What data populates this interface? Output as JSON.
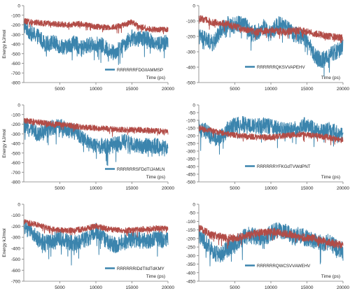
{
  "colors": {
    "blue": "#3b84ad",
    "red": "#b24c47",
    "axis": "#7f7f7f"
  },
  "chart_data": [
    {
      "type": "line",
      "legend": "RRRRRRFDGIIAMMSP",
      "ylabel": "Energy kJ/mol",
      "xlabel": "Time (ps)",
      "xlim": [
        0,
        20000
      ],
      "ylim": [
        -800,
        0
      ],
      "yticks": [
        0,
        -100,
        -200,
        -300,
        -400,
        -500,
        -600,
        -700,
        -800
      ],
      "xticks": [
        5000,
        10000,
        15000,
        20000
      ],
      "series": [
        {
          "color": "blue",
          "points": [
            [
              0,
              -200
            ],
            [
              1000,
              -290
            ],
            [
              2000,
              -320
            ],
            [
              3000,
              -400
            ],
            [
              4000,
              -380
            ],
            [
              5000,
              -420
            ],
            [
              6000,
              -430
            ],
            [
              7000,
              -380
            ],
            [
              8000,
              -450
            ],
            [
              9000,
              -410
            ],
            [
              10000,
              -400
            ],
            [
              11000,
              -420
            ],
            [
              12000,
              -480
            ],
            [
              13000,
              -470
            ],
            [
              14000,
              -400
            ],
            [
              15000,
              -330
            ],
            [
              16000,
              -350
            ],
            [
              17000,
              -330
            ],
            [
              18000,
              -380
            ],
            [
              19000,
              -400
            ],
            [
              20000,
              -380
            ]
          ],
          "amp": 110
        },
        {
          "color": "red",
          "points": [
            [
              0,
              -160
            ],
            [
              2000,
              -180
            ],
            [
              4000,
              -190
            ],
            [
              6000,
              -200
            ],
            [
              8000,
              -190
            ],
            [
              10000,
              -220
            ],
            [
              12000,
              -230
            ],
            [
              14000,
              -200
            ],
            [
              15000,
              -170
            ],
            [
              16000,
              -220
            ],
            [
              18000,
              -250
            ],
            [
              20000,
              -250
            ]
          ],
          "amp": 40
        }
      ]
    },
    {
      "type": "line",
      "legend": "RRRRRRQKSVVAPEHV",
      "ylabel": "",
      "xlabel": "Time (ps)",
      "xlim": [
        0,
        20000
      ],
      "ylim": [
        -500,
        0
      ],
      "yticks": [
        0,
        -100,
        -200,
        -300,
        -400,
        -500
      ],
      "xticks": [
        5000,
        10000,
        15000,
        20000
      ],
      "series": [
        {
          "color": "blue",
          "points": [
            [
              0,
              -200
            ],
            [
              1000,
              -220
            ],
            [
              2000,
              -250
            ],
            [
              3000,
              -160
            ],
            [
              4000,
              -120
            ],
            [
              5000,
              -130
            ],
            [
              6000,
              -100
            ],
            [
              7000,
              -160
            ],
            [
              8000,
              -180
            ],
            [
              9000,
              -140
            ],
            [
              10000,
              -180
            ],
            [
              11000,
              -120
            ],
            [
              12000,
              -140
            ],
            [
              13000,
              -180
            ],
            [
              14000,
              -200
            ],
            [
              15000,
              -220
            ],
            [
              16000,
              -320
            ],
            [
              17000,
              -360
            ],
            [
              18000,
              -320
            ],
            [
              19000,
              -300
            ],
            [
              20000,
              -270
            ]
          ],
          "amp": 70
        },
        {
          "color": "red",
          "points": [
            [
              0,
              -80
            ],
            [
              2000,
              -110
            ],
            [
              4000,
              -120
            ],
            [
              6000,
              -150
            ],
            [
              8000,
              -170
            ],
            [
              10000,
              -160
            ],
            [
              12000,
              -170
            ],
            [
              14000,
              -160
            ],
            [
              16000,
              -180
            ],
            [
              18000,
              -200
            ],
            [
              20000,
              -210
            ]
          ],
          "amp": 30
        }
      ]
    },
    {
      "type": "line",
      "legend": "RRRRRRSFDdTIJAMLN",
      "ylabel": "Energy kJ/mol",
      "xlabel": "Time (ps)",
      "xlim": [
        0,
        20000
      ],
      "ylim": [
        -800,
        0
      ],
      "yticks": [
        0,
        -100,
        -200,
        -300,
        -400,
        -500,
        -600,
        -700,
        -800
      ],
      "xticks": [
        5000,
        10000,
        15000,
        20000
      ],
      "series": [
        {
          "color": "blue",
          "points": [
            [
              0,
              -220
            ],
            [
              1000,
              -260
            ],
            [
              2000,
              -300
            ],
            [
              3000,
              -250
            ],
            [
              4000,
              -230
            ],
            [
              5000,
              -220
            ],
            [
              6000,
              -260
            ],
            [
              7000,
              -280
            ],
            [
              8000,
              -330
            ],
            [
              9000,
              -400
            ],
            [
              10000,
              -430
            ],
            [
              11000,
              -420
            ],
            [
              12000,
              -430
            ],
            [
              13000,
              -400
            ],
            [
              14000,
              -380
            ],
            [
              15000,
              -410
            ],
            [
              16000,
              -420
            ],
            [
              17000,
              -430
            ],
            [
              18000,
              -420
            ],
            [
              19000,
              -440
            ],
            [
              20000,
              -460
            ]
          ],
          "amp": 110
        },
        {
          "color": "red",
          "points": [
            [
              0,
              -160
            ],
            [
              2000,
              -180
            ],
            [
              4000,
              -200
            ],
            [
              6000,
              -210
            ],
            [
              8000,
              -230
            ],
            [
              10000,
              -240
            ],
            [
              12000,
              -250
            ],
            [
              14000,
              -260
            ],
            [
              16000,
              -260
            ],
            [
              18000,
              -270
            ],
            [
              20000,
              -280
            ]
          ],
          "amp": 40
        }
      ]
    },
    {
      "type": "line",
      "legend": "RRRRRRYFKGdTVWdPNT",
      "ylabel": "",
      "xlabel": "Time (ps)",
      "xlim": [
        0,
        20000
      ],
      "ylim": [
        -500,
        0
      ],
      "yticks": [
        0,
        -50,
        -100,
        -150,
        -200,
        -250,
        -300,
        -350,
        -400,
        -450,
        -500
      ],
      "xticks": [
        5000,
        10000,
        15000,
        20000
      ],
      "series": [
        {
          "color": "blue",
          "points": [
            [
              0,
              -150
            ],
            [
              1000,
              -170
            ],
            [
              2000,
              -210
            ],
            [
              3000,
              -220
            ],
            [
              4000,
              -160
            ],
            [
              5000,
              -130
            ],
            [
              6000,
              -120
            ],
            [
              7000,
              -140
            ],
            [
              8000,
              -140
            ],
            [
              9000,
              -130
            ],
            [
              10000,
              -140
            ],
            [
              11000,
              -150
            ],
            [
              12000,
              -170
            ],
            [
              13000,
              -160
            ],
            [
              14000,
              -140
            ],
            [
              15000,
              -130
            ],
            [
              16000,
              -160
            ],
            [
              17000,
              -170
            ],
            [
              18000,
              -160
            ],
            [
              19000,
              -180
            ],
            [
              20000,
              -200
            ]
          ],
          "amp": 70
        },
        {
          "color": "red",
          "points": [
            [
              0,
              -150
            ],
            [
              2000,
              -170
            ],
            [
              4000,
              -190
            ],
            [
              6000,
              -200
            ],
            [
              8000,
              -210
            ],
            [
              10000,
              -210
            ],
            [
              12000,
              -200
            ],
            [
              14000,
              -190
            ],
            [
              16000,
              -200
            ],
            [
              18000,
              -210
            ],
            [
              20000,
              -230
            ]
          ],
          "amp": 25
        }
      ]
    },
    {
      "type": "line",
      "legend": "RRRRRRIDdTIIdTdKMY",
      "ylabel": "Energy kJ/mol",
      "xlabel": "Time (ps)",
      "xlim": [
        0,
        20000
      ],
      "ylim": [
        -700,
        0
      ],
      "yticks": [
        0,
        -100,
        -200,
        -300,
        -400,
        -500,
        -600,
        -700
      ],
      "xticks": [
        5000,
        10000,
        15000,
        20000
      ],
      "series": [
        {
          "color": "blue",
          "points": [
            [
              0,
              -200
            ],
            [
              1000,
              -250
            ],
            [
              2000,
              -320
            ],
            [
              3000,
              -350
            ],
            [
              4000,
              -330
            ],
            [
              5000,
              -300
            ],
            [
              6000,
              -340
            ],
            [
              7000,
              -360
            ],
            [
              8000,
              -330
            ],
            [
              9000,
              -310
            ],
            [
              10000,
              -240
            ],
            [
              11000,
              -300
            ],
            [
              12000,
              -360
            ],
            [
              13000,
              -370
            ],
            [
              14000,
              -330
            ],
            [
              15000,
              -320
            ],
            [
              16000,
              -330
            ],
            [
              17000,
              -340
            ],
            [
              18000,
              -310
            ],
            [
              19000,
              -320
            ],
            [
              20000,
              -330
            ]
          ],
          "amp": 100
        },
        {
          "color": "red",
          "points": [
            [
              0,
              -160
            ],
            [
              2000,
              -190
            ],
            [
              4000,
              -230
            ],
            [
              6000,
              -240
            ],
            [
              8000,
              -230
            ],
            [
              10000,
              -200
            ],
            [
              12000,
              -230
            ],
            [
              14000,
              -240
            ],
            [
              16000,
              -230
            ],
            [
              18000,
              -220
            ],
            [
              20000,
              -220
            ]
          ],
          "amp": 35
        }
      ]
    },
    {
      "type": "line",
      "legend": "RRRRRRQWCSVVAWEHV",
      "ylabel": "",
      "xlabel": "Time (ps)",
      "xlim": [
        0,
        20000
      ],
      "ylim": [
        -450,
        0
      ],
      "yticks": [
        0,
        -50,
        -100,
        -150,
        -200,
        -250,
        -300,
        -350,
        -400,
        -450
      ],
      "xticks": [
        5000,
        10000,
        15000,
        20000
      ],
      "series": [
        {
          "color": "blue",
          "points": [
            [
              0,
              -180
            ],
            [
              1000,
              -220
            ],
            [
              2000,
              -280
            ],
            [
              3000,
              -300
            ],
            [
              4000,
              -260
            ],
            [
              5000,
              -240
            ],
            [
              6000,
              -200
            ],
            [
              7000,
              -180
            ],
            [
              8000,
              -190
            ],
            [
              9000,
              -200
            ],
            [
              10000,
              -170
            ],
            [
              11000,
              -150
            ],
            [
              12000,
              -160
            ],
            [
              13000,
              -190
            ],
            [
              14000,
              -180
            ],
            [
              15000,
              -200
            ],
            [
              16000,
              -210
            ],
            [
              17000,
              -230
            ],
            [
              18000,
              -220
            ],
            [
              19000,
              -250
            ],
            [
              20000,
              -270
            ]
          ],
          "amp": 65
        },
        {
          "color": "red",
          "points": [
            [
              0,
              -140
            ],
            [
              2000,
              -180
            ],
            [
              4000,
              -200
            ],
            [
              6000,
              -190
            ],
            [
              8000,
              -170
            ],
            [
              10000,
              -160
            ],
            [
              12000,
              -170
            ],
            [
              14000,
              -190
            ],
            [
              16000,
              -200
            ],
            [
              18000,
              -220
            ],
            [
              20000,
              -240
            ]
          ],
          "amp": 30
        }
      ]
    }
  ]
}
